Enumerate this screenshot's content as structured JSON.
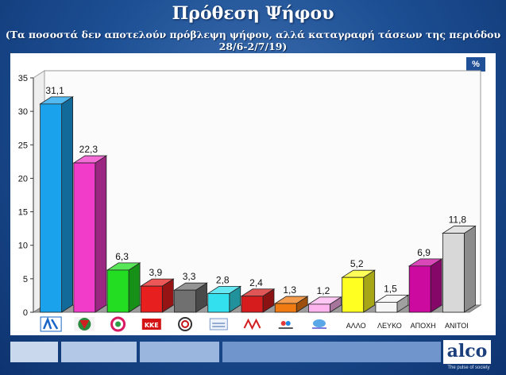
{
  "header": {
    "title": "Πρόθεση Ψήφου",
    "subtitle": "(Τα ποσοστά δεν αποτελούν πρόβλεψη ψήφου, αλλά καταγραφή τάσεων της περιόδου 28/6-2/7/19)",
    "unit_badge": "%"
  },
  "brand": {
    "logo": "alco",
    "tagline": "The pulse of society"
  },
  "chart_data": {
    "type": "bar",
    "title": "Πρόθεση Ψήφου",
    "xlabel": "",
    "ylabel": "",
    "ylim": [
      0,
      35
    ],
    "yticks": [
      0,
      5,
      10,
      15,
      20,
      25,
      30,
      35
    ],
    "grid": false,
    "legend": "none",
    "bar_style": "3d",
    "categories": [
      "",
      "",
      "",
      "",
      "",
      "",
      "",
      "",
      "",
      "ΑΛΛΟ",
      "ΛΕΥΚΟ",
      "ΑΠΟΧΗ",
      "ΑΝΙΤΟΙ"
    ],
    "category_icons": [
      "nd-logo-icon",
      "pasok-kinal-logo-icon",
      "syriza-logo-icon",
      "kke-logo-icon",
      "elliniki-lysi-logo-icon",
      "elliniki-lysi-alt-logo-icon",
      "mera25-logo-icon",
      "small-party-logo-icon",
      "small-party-2-logo-icon",
      "",
      "",
      "",
      ""
    ],
    "value_labels": [
      "31,1",
      "22,3",
      "6,3",
      "3,9",
      "3,3",
      "2,8",
      "2,4",
      "1,3",
      "1,2",
      "5,2",
      "1,5",
      "6,9",
      "11,8"
    ],
    "values": [
      31.1,
      22.3,
      6.3,
      3.9,
      3.3,
      2.8,
      2.4,
      1.3,
      1.2,
      5.2,
      1.5,
      6.9,
      11.8
    ],
    "colors": [
      "#1aa3ec",
      "#f03cc8",
      "#22dd22",
      "#e81f1f",
      "#707070",
      "#33e0ee",
      "#d61c1c",
      "#f07b12",
      "#ffb4ef",
      "#ffff22",
      "#f6f6f6",
      "#cc0aa0",
      "#d8d8d8"
    ]
  }
}
